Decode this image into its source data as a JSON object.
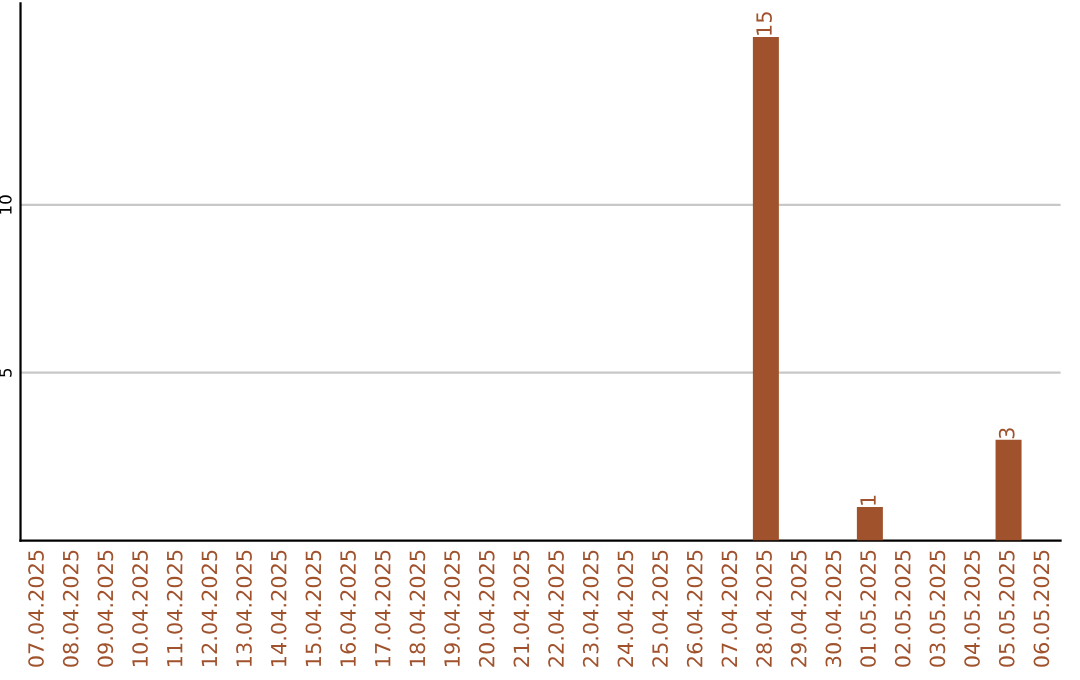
{
  "chart_data": {
    "type": "bar",
    "categories": [
      "07.04.2025",
      "08.04.2025",
      "09.04.2025",
      "10.04.2025",
      "11.04.2025",
      "12.04.2025",
      "13.04.2025",
      "14.04.2025",
      "15.04.2025",
      "16.04.2025",
      "17.04.2025",
      "18.04.2025",
      "19.04.2025",
      "20.04.2025",
      "21.04.2025",
      "22.04.2025",
      "23.04.2025",
      "24.04.2025",
      "25.04.2025",
      "26.04.2025",
      "27.04.2025",
      "28.04.2025",
      "29.04.2025",
      "30.04.2025",
      "01.05.2025",
      "02.05.2025",
      "03.05.2025",
      "04.05.2025",
      "05.05.2025",
      "06.05.2025"
    ],
    "values": [
      0,
      0,
      0,
      0,
      0,
      0,
      0,
      0,
      0,
      0,
      0,
      0,
      0,
      0,
      0,
      0,
      0,
      0,
      0,
      0,
      0,
      15,
      0,
      0,
      1,
      0,
      0,
      0,
      3,
      0
    ],
    "value_labels": [
      null,
      null,
      null,
      null,
      null,
      null,
      null,
      null,
      null,
      null,
      null,
      null,
      null,
      null,
      null,
      null,
      null,
      null,
      null,
      null,
      null,
      "15",
      null,
      null,
      "1",
      null,
      null,
      null,
      "3",
      null
    ],
    "color": "#a0522d",
    "ylim": [
      0,
      16
    ],
    "yticks": [
      5,
      10
    ],
    "grid": "y"
  }
}
